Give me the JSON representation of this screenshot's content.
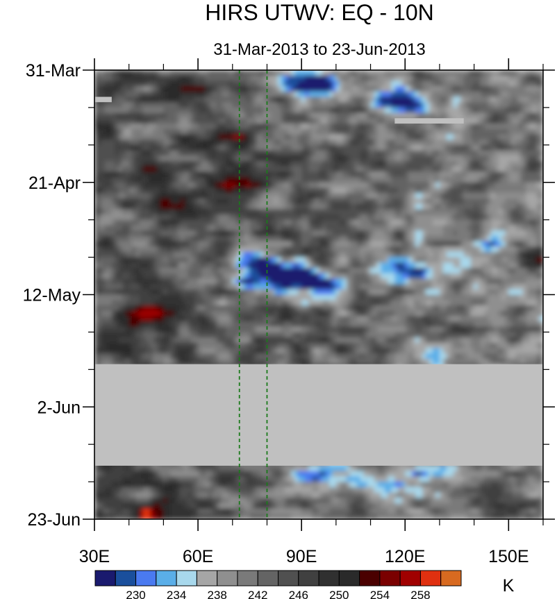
{
  "chart_data": {
    "type": "heatmap",
    "title": "HIRS UTWV: EQ - 10N",
    "subtitle": "31-Mar-2013 to 23-Jun-2013",
    "xlabel": "",
    "ylabel": "",
    "x_axis": {
      "range": [
        30,
        160
      ],
      "tick_values": [
        30,
        60,
        90,
        120,
        150
      ],
      "tick_labels": [
        "30E",
        "60E",
        "90E",
        "120E",
        "150E"
      ],
      "minor_tick_values": [
        30,
        40,
        50,
        60,
        70,
        80,
        90,
        100,
        110,
        120,
        130,
        140,
        150,
        160
      ]
    },
    "y_axis": {
      "range": [
        "2013-03-31",
        "2013-06-23"
      ],
      "direction": "time increases downward",
      "tick_values": [
        "2013-03-31",
        "2013-04-21",
        "2013-05-12",
        "2013-06-02",
        "2013-06-23"
      ],
      "tick_labels": [
        "31-Mar",
        "21-Apr",
        "12-May",
        "2-Jun",
        "23-Jun"
      ],
      "minor_tick_values": [
        "2013-04-07",
        "2013-04-14",
        "2013-04-28",
        "2013-05-05",
        "2013-05-19",
        "2013-05-26",
        "2013-06-09",
        "2013-06-16"
      ]
    },
    "reference_lines": [
      {
        "axis": "x",
        "value": 72,
        "style": "dashed",
        "color": "#1a7a1a"
      },
      {
        "axis": "x",
        "value": 80,
        "style": "dashed",
        "color": "#1a7a1a"
      }
    ],
    "missing_data": [
      {
        "x_range": [
          30,
          160
        ],
        "y_range": [
          "2013-05-25",
          "2013-06-13"
        ]
      },
      {
        "x_range": [
          117,
          137
        ],
        "y_range": [
          "2013-04-09",
          "2013-04-10"
        ]
      },
      {
        "x_range": [
          30,
          35
        ],
        "y_range": [
          "2013-04-05",
          "2013-04-06"
        ]
      }
    ],
    "colorbar": {
      "unit": "K",
      "levels": [
        228,
        230,
        232,
        234,
        236,
        238,
        240,
        242,
        244,
        246,
        248,
        250,
        252,
        254,
        256,
        258
      ],
      "colors": [
        "#1a1a6e",
        "#1a4f9c",
        "#4a7af0",
        "#5aaee8",
        "#a8d8ec",
        "#a6a6a6",
        "#8f8f8f",
        "#7a7a7a",
        "#646464",
        "#505050",
        "#404040",
        "#303030",
        "#2a2a2a",
        "#4a0000",
        "#7a0000",
        "#a00000",
        "#e03010",
        "#d86a20"
      ],
      "labeled_levels": [
        230,
        234,
        238,
        242,
        246,
        250,
        254,
        258
      ],
      "labels": [
        "230",
        "234",
        "238",
        "242",
        "246",
        "250",
        "254",
        "258"
      ]
    },
    "features": [
      {
        "kind": "moist (low UTWV)",
        "x": 96,
        "y": "2013-04-03",
        "value": 229
      },
      {
        "kind": "moist (low UTWV)",
        "x": 89,
        "y": "2013-04-02",
        "value": 233
      },
      {
        "kind": "moist (low UTWV)",
        "x": 118,
        "y": "2013-04-06",
        "value": 231
      },
      {
        "kind": "moist (low UTWV)",
        "x": 122,
        "y": "2013-04-06",
        "value": 233
      },
      {
        "kind": "moist (low UTWV)",
        "x": 78,
        "y": "2013-05-06",
        "value": 229
      },
      {
        "kind": "moist (low UTWV)",
        "x": 84,
        "y": "2013-05-08",
        "value": 233
      },
      {
        "kind": "moist (low UTWV)",
        "x": 77,
        "y": "2013-05-10",
        "value": 231
      },
      {
        "kind": "moist (low UTWV)",
        "x": 95,
        "y": "2013-05-10",
        "value": 230
      },
      {
        "kind": "moist (low UTWV)",
        "x": 89,
        "y": "2013-05-09",
        "value": 231
      },
      {
        "kind": "moist (low UTWV)",
        "x": 117,
        "y": "2013-05-07",
        "value": 233
      },
      {
        "kind": "moist (low UTWV)",
        "x": 126,
        "y": "2013-05-08",
        "value": 234
      },
      {
        "kind": "moist (low UTWV)",
        "x": 144,
        "y": "2013-05-03",
        "value": 234
      },
      {
        "kind": "moist (low UTWV)",
        "x": 128,
        "y": "2013-05-24",
        "value": 234
      },
      {
        "kind": "moist (low UTWV)",
        "x": 131,
        "y": "2013-06-14",
        "value": 230
      },
      {
        "kind": "moist (low UTWV)",
        "x": 100,
        "y": "2013-06-15",
        "value": 233
      },
      {
        "kind": "moist (low UTWV)",
        "x": 90,
        "y": "2013-06-16",
        "value": 234
      },
      {
        "kind": "moist (low UTWV)",
        "x": 116,
        "y": "2013-06-17",
        "value": 235
      },
      {
        "kind": "dry (high UTWV)",
        "x": 44,
        "y": "2013-05-16",
        "value": 258
      },
      {
        "kind": "dry (high UTWV)",
        "x": 46,
        "y": "2013-06-22",
        "value": 255
      },
      {
        "kind": "dry (high UTWV)",
        "x": 48,
        "y": "2013-04-20",
        "value": 255
      },
      {
        "kind": "dry (high UTWV)",
        "x": 73,
        "y": "2013-04-21",
        "value": 255
      },
      {
        "kind": "dry (high UTWV)",
        "x": 67,
        "y": "2013-04-13",
        "value": 254
      },
      {
        "kind": "dry (high UTWV)",
        "x": 159,
        "y": "2013-05-05",
        "value": 254
      },
      {
        "kind": "dry (high UTWV)",
        "x": 60,
        "y": "2013-04-04",
        "value": 251
      },
      {
        "kind": "dry (high UTWV)",
        "x": 52,
        "y": "2013-04-26",
        "value": 251
      },
      {
        "kind": "dry (high UTWV)",
        "x": 40,
        "y": "2013-05-22",
        "value": 250
      },
      {
        "kind": "dry (high UTWV)",
        "x": 110,
        "y": "2013-04-16",
        "value": 249
      },
      {
        "kind": "dry (high UTWV)",
        "x": 150,
        "y": "2013-04-11",
        "value": 249
      },
      {
        "kind": "dry (high UTWV)",
        "x": 140,
        "y": "2013-05-18",
        "value": 249
      },
      {
        "kind": "dry (high UTWV)",
        "x": 105,
        "y": "2013-05-22",
        "value": 249
      },
      {
        "kind": "dry (high UTWV)",
        "x": 150,
        "y": "2013-06-21",
        "value": 249
      },
      {
        "kind": "dry (high UTWV)",
        "x": 60,
        "y": "2013-06-20",
        "value": 249
      }
    ]
  }
}
